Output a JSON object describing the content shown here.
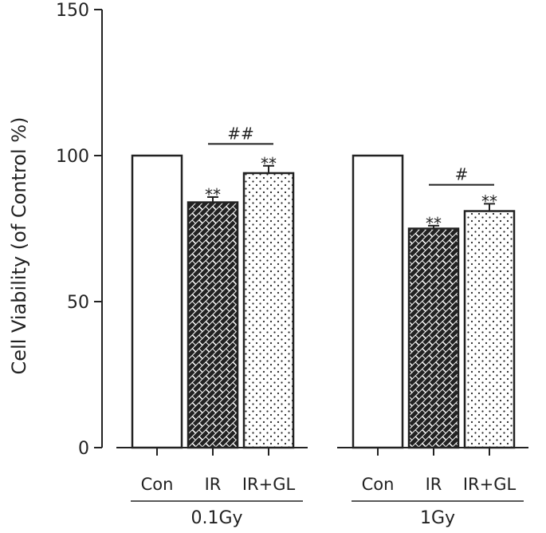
{
  "chart_data": {
    "type": "bar",
    "title": "",
    "ylabel": "Cell Viability (of Control %)",
    "xlabel": "",
    "ylim": [
      0,
      150
    ],
    "yticks": [
      0,
      50,
      100,
      150
    ],
    "groups": [
      {
        "label": "0.1Gy",
        "bars": [
          {
            "category": "Con",
            "value": 100,
            "error": 0,
            "pattern": "none",
            "annotation": ""
          },
          {
            "category": "IR",
            "value": 84,
            "error": 1.8,
            "pattern": "brick",
            "annotation": "**"
          },
          {
            "category": "IR+GL",
            "value": 94,
            "error": 2.5,
            "pattern": "dots",
            "annotation": "**"
          }
        ],
        "comparison": {
          "from": 1,
          "to": 2,
          "label": "##",
          "y": 104
        }
      },
      {
        "label": "1Gy",
        "bars": [
          {
            "category": "Con",
            "value": 100,
            "error": 0,
            "pattern": "none",
            "annotation": ""
          },
          {
            "category": "IR",
            "value": 75,
            "error": 1.0,
            "pattern": "brick",
            "annotation": "**"
          },
          {
            "category": "IR+GL",
            "value": 81,
            "error": 2.5,
            "pattern": "dots",
            "annotation": "**"
          }
        ],
        "comparison": {
          "from": 1,
          "to": 2,
          "label": "#",
          "y": 90
        }
      }
    ],
    "grid": false,
    "legend": "none"
  }
}
